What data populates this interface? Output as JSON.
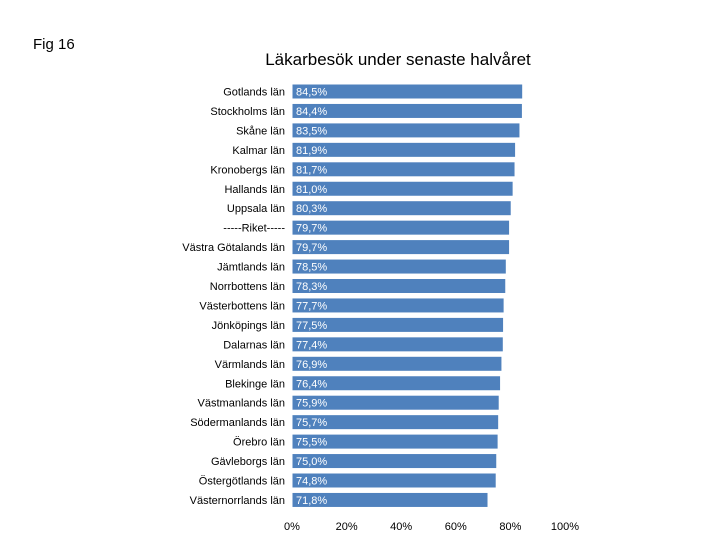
{
  "figure_label": "Fig 16",
  "chart_data": {
    "type": "bar",
    "orientation": "horizontal",
    "title": "Läkarbesök under senaste halvåret",
    "xlabel": "",
    "ylabel": "",
    "xlim": [
      0,
      100
    ],
    "x_ticks": [
      "0%",
      "20%",
      "40%",
      "60%",
      "80%",
      "100%"
    ],
    "grid": false,
    "bar_color": "#4f81bd",
    "bar_edge_color": "#ffffff",
    "label_color": "#ffffff",
    "categories": [
      "Gotlands län",
      "Stockholms län",
      "Skåne län",
      "Kalmar län",
      "Kronobergs län",
      "Hallands län",
      "Uppsala län",
      "-----Riket-----",
      "Västra Götalands län",
      "Jämtlands län",
      "Norrbottens län",
      "Västerbottens län",
      "Jönköpings län",
      "Dalarnas län",
      "Värmlands län",
      "Blekinge län",
      "Västmanlands län",
      "Södermanlands län",
      "Örebro län",
      "Gävleborgs län",
      "Östergötlands län",
      "Västernorrlands län"
    ],
    "values": [
      84.5,
      84.4,
      83.5,
      81.9,
      81.7,
      81.0,
      80.3,
      79.7,
      79.7,
      78.5,
      78.3,
      77.7,
      77.5,
      77.4,
      76.9,
      76.4,
      75.9,
      75.7,
      75.5,
      75.0,
      74.8,
      71.8
    ],
    "value_labels": [
      "84,5%",
      "84,4%",
      "83,5%",
      "81,9%",
      "81,7%",
      "81,0%",
      "80,3%",
      "79,7%",
      "79,7%",
      "78,5%",
      "78,3%",
      "77,7%",
      "77,5%",
      "77,4%",
      "76,9%",
      "76,4%",
      "75,9%",
      "75,7%",
      "75,5%",
      "75,0%",
      "74,8%",
      "71,8%"
    ]
  }
}
